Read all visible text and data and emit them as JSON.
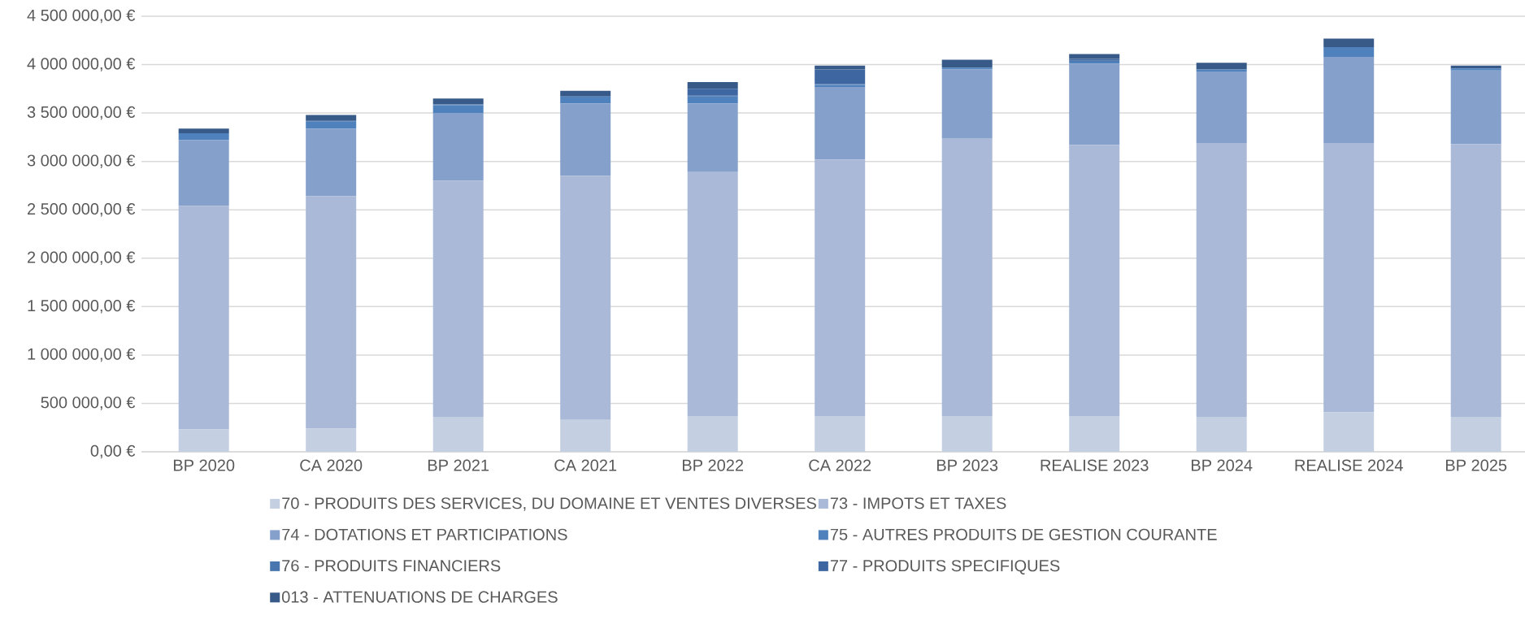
{
  "chart_data": {
    "type": "bar",
    "stacked": true,
    "grid": "y",
    "legend": "bottom",
    "categories": [
      "BP 2020",
      "CA 2020",
      "BP 2021",
      "CA 2021",
      "BP 2022",
      "CA 2022",
      "BP 2023",
      "REALISE 2023",
      "BP 2024",
      "REALISE 2024",
      "BP 2025"
    ],
    "ylim": [
      0,
      4500000
    ],
    "yticks": [
      {
        "value": 0,
        "label": "0,00 €"
      },
      {
        "value": 500000,
        "label": "500 000,00 €"
      },
      {
        "value": 1000000,
        "label": "1 000 000,00 €"
      },
      {
        "value": 1500000,
        "label": "1 500 000,00 €"
      },
      {
        "value": 2000000,
        "label": "2 000 000,00 €"
      },
      {
        "value": 2500000,
        "label": "2 500 000,00 €"
      },
      {
        "value": 3000000,
        "label": "3 000 000,00 €"
      },
      {
        "value": 3500000,
        "label": "3 500 000,00 €"
      },
      {
        "value": 4000000,
        "label": "4 000 000,00 €"
      },
      {
        "value": 4500000,
        "label": "4 500 000,00 €"
      }
    ],
    "series": [
      {
        "name": "70 - PRODUITS DES SERVICES, DU DOMAINE ET VENTES DIVERSES",
        "color": "#c5cfe2",
        "values": [
          230000,
          240000,
          360000,
          330000,
          370000,
          370000,
          370000,
          370000,
          360000,
          410000,
          360000
        ]
      },
      {
        "name": "73 - IMPOTS ET TAXES",
        "color": "#aab9d8",
        "values": [
          2310000,
          2400000,
          2440000,
          2520000,
          2520000,
          2650000,
          2870000,
          2800000,
          2830000,
          2780000,
          2820000
        ]
      },
      {
        "name": "74 - DOTATIONS ET PARTICIPATIONS",
        "color": "#85a0cb",
        "values": [
          680000,
          700000,
          700000,
          750000,
          710000,
          750000,
          710000,
          840000,
          740000,
          890000,
          760000
        ]
      },
      {
        "name": "75 - AUTRES PRODUITS DE GESTION COURANTE",
        "color": "#4f81bd",
        "values": [
          70000,
          70000,
          80000,
          70000,
          70000,
          20000,
          20000,
          20000,
          20000,
          100000,
          20000
        ]
      },
      {
        "name": "76 - PRODUITS FINANCIERS",
        "color": "#4a76b0",
        "values": [
          null,
          10000,
          10000,
          null,
          10000,
          10000,
          null,
          10000,
          null,
          null,
          null
        ]
      },
      {
        "name": "77 - PRODUITS SPECIFIQUES",
        "color": "#3e66a0",
        "values": [
          null,
          null,
          null,
          null,
          70000,
          150000,
          null,
          20000,
          null,
          null,
          null
        ]
      },
      {
        "name": "013 - ATTENUATIONS DE CHARGES",
        "color": "#375a88",
        "values": [
          50000,
          60000,
          60000,
          60000,
          70000,
          40000,
          80000,
          50000,
          70000,
          90000,
          30000
        ]
      }
    ]
  }
}
